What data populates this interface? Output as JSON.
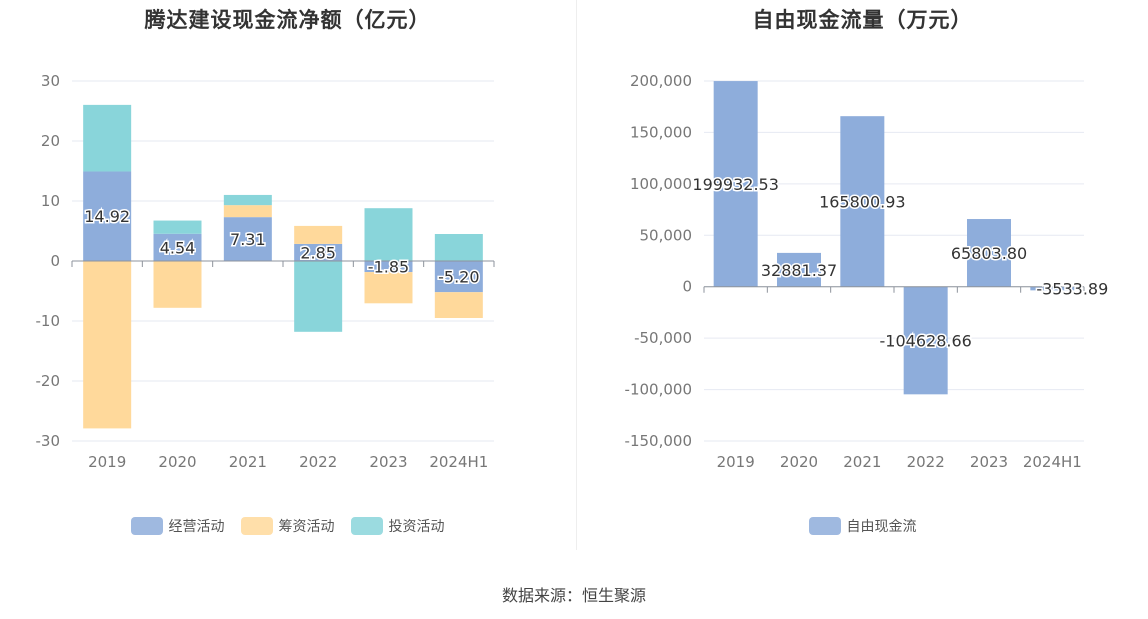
{
  "source": "数据来源：恒生聚源",
  "chart_data": [
    {
      "type": "bar",
      "stacked": true,
      "title": "腾达建设现金流净额（亿元）",
      "categories": [
        "2019",
        "2020",
        "2021",
        "2022",
        "2023",
        "2024H1"
      ],
      "ylim": [
        -30,
        30
      ],
      "yticks": [
        "30",
        "20",
        "10",
        "0",
        "-10",
        "-20",
        "-30"
      ],
      "grid": true,
      "legend_position": "bottom",
      "series": [
        {
          "name": "经营活动",
          "color": "#8eaddb",
          "values": [
            14.92,
            4.54,
            7.31,
            2.85,
            -1.85,
            -5.2
          ],
          "labels": [
            "14.92",
            "4.54",
            "7.31",
            "2.85",
            "-1.85",
            "-5.20"
          ]
        },
        {
          "name": "筹资活动",
          "color": "#ffd99b",
          "values": [
            -27.9,
            -7.8,
            2.0,
            3.0,
            -5.2,
            -4.3
          ]
        },
        {
          "name": "投资活动",
          "color": "#89d5da",
          "values": [
            11.1,
            2.2,
            1.7,
            -11.8,
            8.8,
            4.5
          ]
        }
      ]
    },
    {
      "type": "bar",
      "title": "自由现金流量（万元）",
      "categories": [
        "2019",
        "2020",
        "2021",
        "2022",
        "2023",
        "2024H1"
      ],
      "ylim": [
        -150000,
        200000
      ],
      "yticks": [
        "200,000",
        "150,000",
        "100,000",
        "50,000",
        "0",
        "-50,000",
        "-100,000",
        "-150,000"
      ],
      "grid": true,
      "legend_position": "bottom",
      "series": [
        {
          "name": "自由现金流",
          "color": "#8eaddb",
          "values": [
            199932.53,
            32881.37,
            165800.93,
            -104628.66,
            65803.8,
            -3533.89
          ],
          "labels": [
            "199932.53",
            "32881.37",
            "165800.93",
            "-104628.66",
            "65803.80",
            "-3533.89"
          ]
        }
      ]
    }
  ]
}
